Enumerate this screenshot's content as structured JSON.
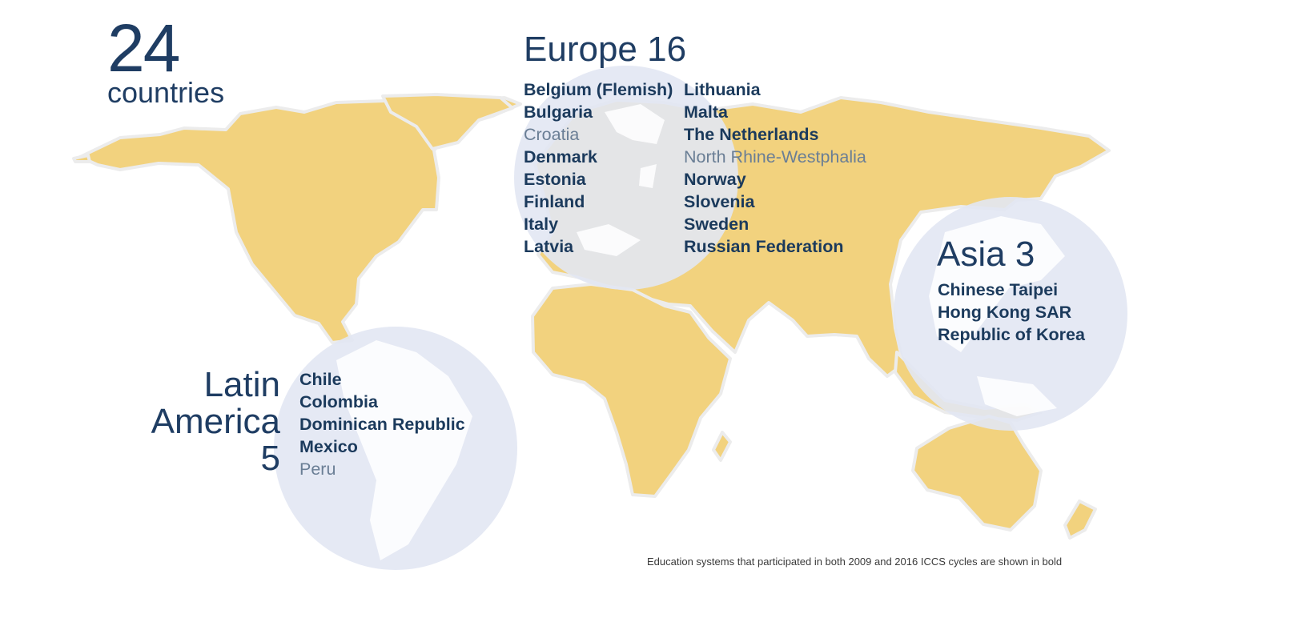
{
  "header": {
    "total_number": "24",
    "total_label": "countries"
  },
  "regions": {
    "europe": {
      "title": "Europe 16",
      "col1": [
        {
          "name": "Belgium (Flemish)",
          "bold": true
        },
        {
          "name": "Bulgaria",
          "bold": true
        },
        {
          "name": "Croatia",
          "bold": false
        },
        {
          "name": "Denmark",
          "bold": true
        },
        {
          "name": "Estonia",
          "bold": true
        },
        {
          "name": "Finland",
          "bold": true
        },
        {
          "name": "Italy",
          "bold": true
        },
        {
          "name": "Latvia",
          "bold": true
        }
      ],
      "col2": [
        {
          "name": "Lithuania",
          "bold": true
        },
        {
          "name": "Malta",
          "bold": true
        },
        {
          "name": "The Netherlands",
          "bold": true
        },
        {
          "name": "North Rhine-Westphalia",
          "bold": false
        },
        {
          "name": "Norway",
          "bold": true
        },
        {
          "name": "Slovenia",
          "bold": true
        },
        {
          "name": "Sweden",
          "bold": true
        },
        {
          "name": "Russian Federation",
          "bold": true
        }
      ]
    },
    "asia": {
      "title": "Asia 3",
      "countries": [
        {
          "name": "Chinese Taipei",
          "bold": true
        },
        {
          "name": "Hong Kong SAR",
          "bold": true
        },
        {
          "name": "Republic of Korea",
          "bold": true
        }
      ]
    },
    "latin_america": {
      "title_line1": "Latin",
      "title_line2": "America",
      "title_line3": "5",
      "countries": [
        {
          "name": "Chile",
          "bold": true
        },
        {
          "name": "Colombia",
          "bold": true
        },
        {
          "name": "Dominican Republic",
          "bold": true
        },
        {
          "name": "Mexico",
          "bold": true
        },
        {
          "name": "Peru",
          "bold": false
        }
      ]
    }
  },
  "footnote": "Education systems that participated in both 2009 and 2016 ICCS cycles are shown in bold",
  "colors": {
    "land": "#f2d27e",
    "circle": "#e5e9f5",
    "text_dark": "#1b3a5c",
    "text_light": "#6a7e95"
  }
}
